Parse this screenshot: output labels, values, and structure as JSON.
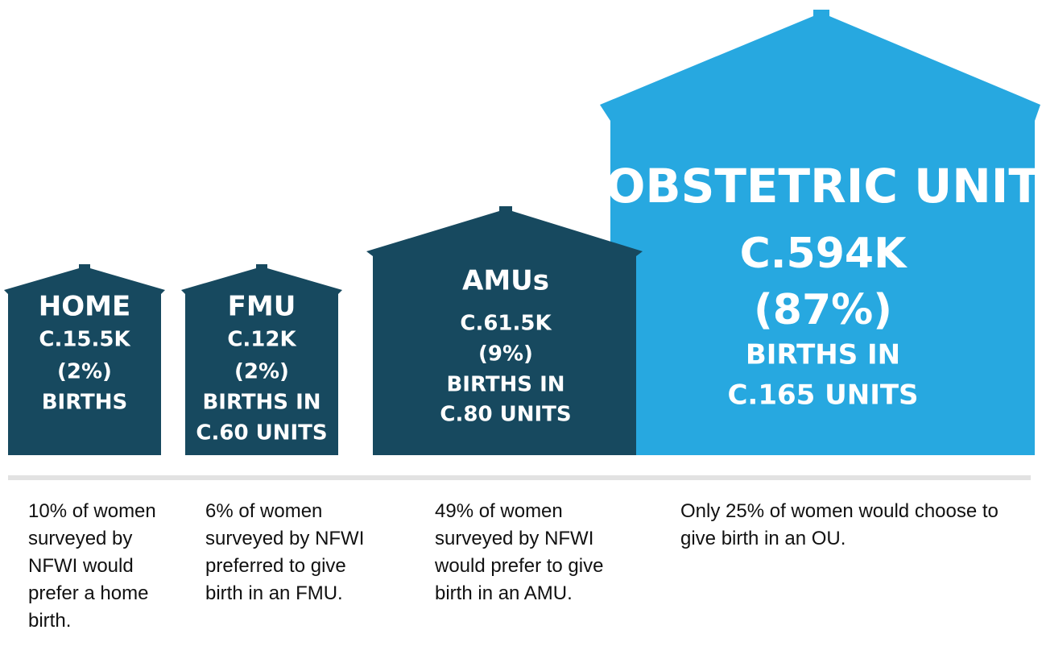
{
  "houses": [
    {
      "title": "HOME",
      "lines": [
        "C.15.5K",
        "(2%)",
        "BIRTHS"
      ],
      "note": "10% of women surveyed by NFWI would prefer a home birth."
    },
    {
      "title": "FMU",
      "lines": [
        "C.12K",
        "(2%)",
        "BIRTHS IN",
        "C.60 UNITS"
      ],
      "note": "6% of women surveyed by NFWI preferred to give birth in an FMU."
    },
    {
      "title": "AMUs",
      "lines": [
        "C.61.5K",
        "(9%)",
        "BIRTHS IN",
        "C.80 UNITS"
      ],
      "note": "49% of women surveyed by NFWI would prefer to give birth in an AMU."
    },
    {
      "title": "OBSTETRIC UNIT",
      "lines": [
        "C.594K",
        "(87%)",
        "BIRTHS IN",
        "C.165 UNITS"
      ],
      "note": "Only 25% of women would choose to give birth in an OU."
    }
  ]
}
